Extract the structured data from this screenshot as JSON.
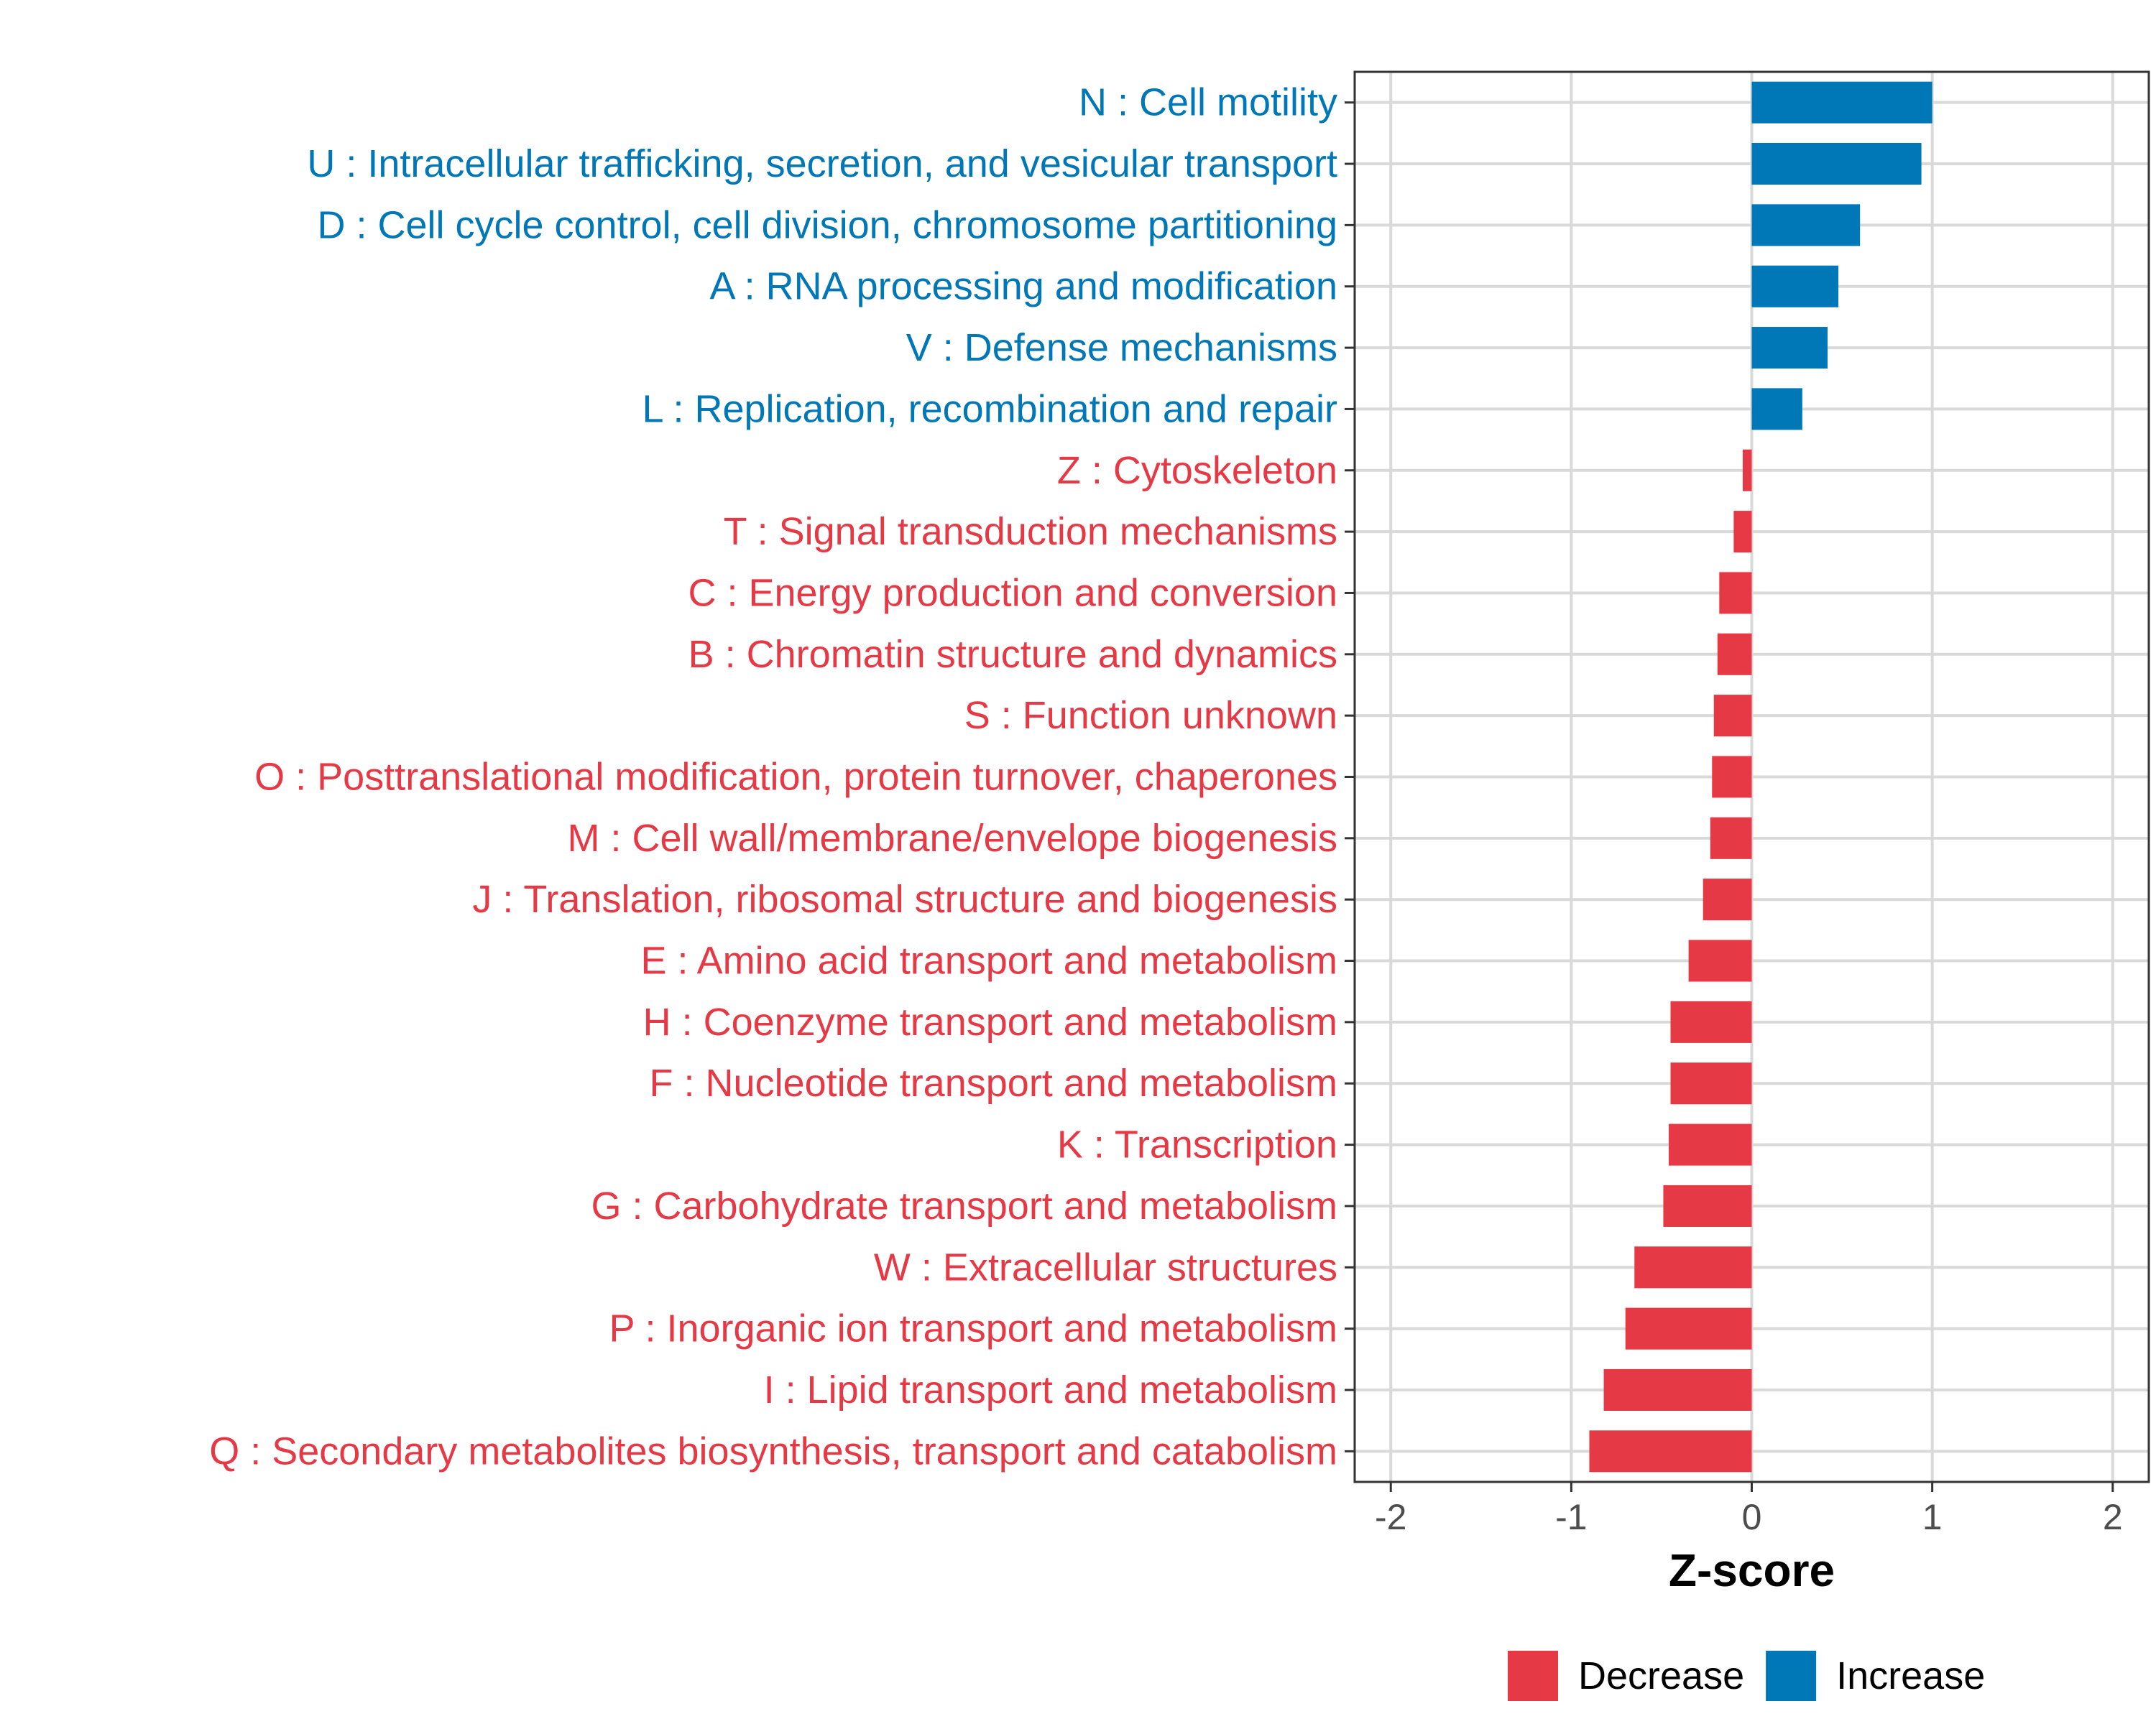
{
  "chart_data": {
    "type": "bar",
    "orientation": "horizontal",
    "xlabel": "Z-score",
    "xlim": [
      -2.2,
      2.2
    ],
    "xticks": [
      -2,
      -1,
      0,
      1,
      2
    ],
    "xtick_labels": [
      "-2",
      "-1",
      "0",
      "1",
      "2"
    ],
    "grid": true,
    "colors": {
      "Decrease": "#E63946",
      "Increase": "#0077B6"
    },
    "legend": {
      "position": "bottom",
      "entries": [
        {
          "label": "Decrease",
          "color": "#E63946"
        },
        {
          "label": "Increase",
          "color": "#0077B6"
        }
      ]
    },
    "categories": [
      "N : Cell motility",
      "U : Intracellular trafficking, secretion, and vesicular transport",
      "D : Cell cycle control, cell division, chromosome partitioning",
      "A : RNA processing and modification",
      "V : Defense mechanisms",
      "L : Replication, recombination and repair",
      "Z : Cytoskeleton",
      "T : Signal transduction mechanisms",
      "C : Energy production and conversion",
      "B : Chromatin structure and dynamics",
      "S : Function unknown",
      "O : Posttranslational modification, protein turnover, chaperones",
      "M : Cell wall/membrane/envelope biogenesis",
      "J : Translation, ribosomal structure and biogenesis",
      "E : Amino acid transport and metabolism",
      "H : Coenzyme transport and metabolism",
      "F : Nucleotide transport and metabolism",
      "K : Transcription",
      "G : Carbohydrate transport and metabolism",
      "W : Extracellular structures",
      "P : Inorganic ion transport and metabolism",
      "I : Lipid transport and metabolism",
      "Q : Secondary metabolites biosynthesis, transport and catabolism"
    ],
    "values": [
      1.0,
      0.94,
      0.6,
      0.48,
      0.42,
      0.28,
      -0.05,
      -0.1,
      -0.18,
      -0.19,
      -0.21,
      -0.22,
      -0.23,
      -0.27,
      -0.35,
      -0.45,
      -0.45,
      -0.46,
      -0.49,
      -0.65,
      -0.7,
      -0.82,
      -0.9
    ],
    "groups": [
      "Increase",
      "Increase",
      "Increase",
      "Increase",
      "Increase",
      "Increase",
      "Decrease",
      "Decrease",
      "Decrease",
      "Decrease",
      "Decrease",
      "Decrease",
      "Decrease",
      "Decrease",
      "Decrease",
      "Decrease",
      "Decrease",
      "Decrease",
      "Decrease",
      "Decrease",
      "Decrease",
      "Decrease",
      "Decrease"
    ]
  }
}
